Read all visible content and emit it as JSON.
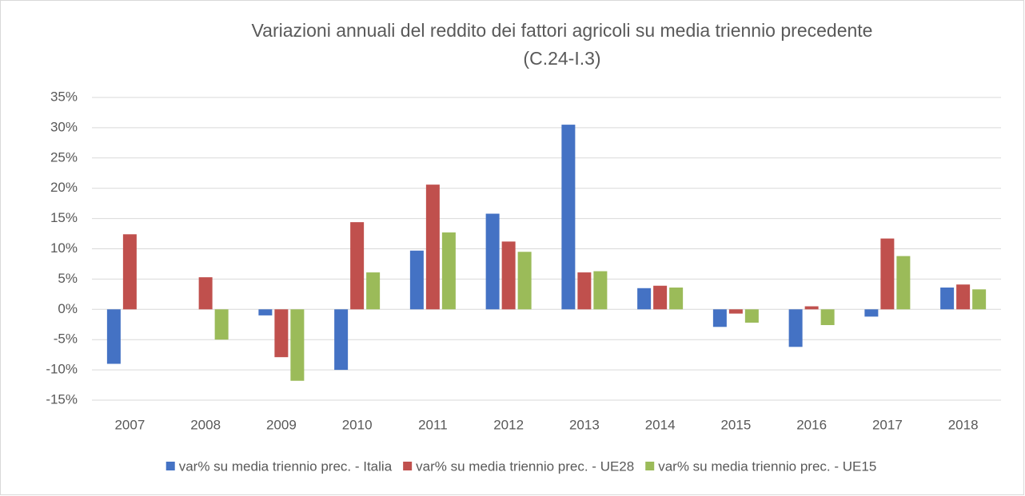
{
  "chart_data": {
    "type": "bar",
    "title": "Variazioni annuali del reddito dei fattori agricoli su media triennio precedente",
    "subtitle": "(C.24-I.3)",
    "categories": [
      "2007",
      "2008",
      "2009",
      "2010",
      "2011",
      "2012",
      "2013",
      "2014",
      "2015",
      "2016",
      "2017",
      "2018"
    ],
    "series": [
      {
        "name": "var% su media triennio prec. - Italia",
        "color": "#4472c4",
        "values": [
          -9,
          null,
          -1,
          -10,
          9.7,
          15.8,
          30.5,
          3.5,
          -2.9,
          -6.2,
          -1.2,
          3.6
        ]
      },
      {
        "name": "var% su media triennio prec. - UE28",
        "color": "#c0504d",
        "values": [
          12.4,
          5.3,
          -7.9,
          14.4,
          20.6,
          11.2,
          6.1,
          3.9,
          -0.7,
          0.5,
          11.7,
          4.1
        ]
      },
      {
        "name": "var% su media triennio prec. - UE15",
        "color": "#9bbb59",
        "values": [
          null,
          -5,
          -11.8,
          6.1,
          12.7,
          9.5,
          6.3,
          3.6,
          -2.2,
          -2.6,
          8.8,
          3.3
        ]
      }
    ],
    "ylim": [
      -15,
      35
    ],
    "yticks": [
      {
        "value": -15,
        "label": "-15%"
      },
      {
        "value": -10,
        "label": "-10%"
      },
      {
        "value": -5,
        "label": "-5%"
      },
      {
        "value": 0,
        "label": "0%"
      },
      {
        "value": 5,
        "label": "5%"
      },
      {
        "value": 10,
        "label": "10%"
      },
      {
        "value": 15,
        "label": "15%"
      },
      {
        "value": 20,
        "label": "20%"
      },
      {
        "value": 25,
        "label": "25%"
      },
      {
        "value": 30,
        "label": "30%"
      },
      {
        "value": 35,
        "label": "35%"
      }
    ],
    "grid": true,
    "legend": "bottom"
  }
}
